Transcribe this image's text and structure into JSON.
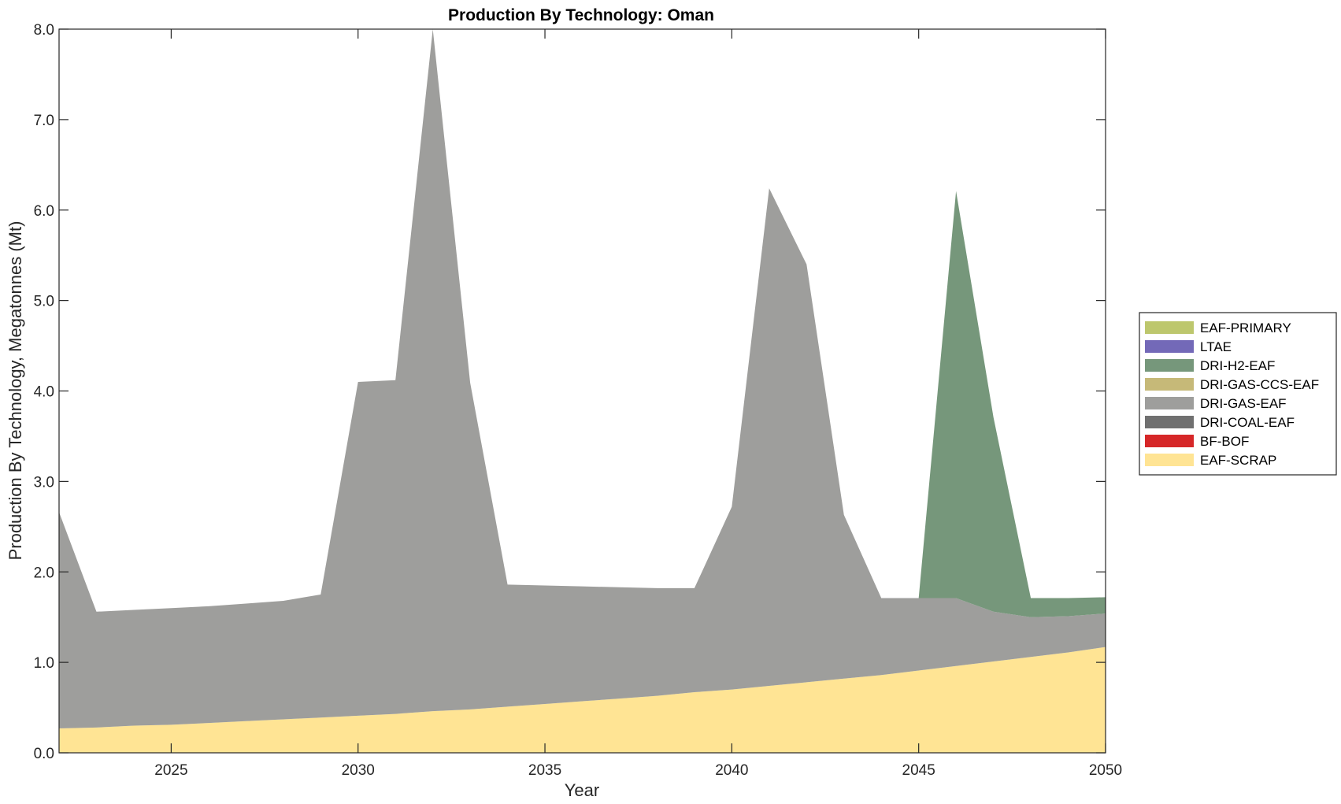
{
  "chart_data": {
    "type": "area",
    "stacked": true,
    "title": "Production By Technology: Oman",
    "xlabel": "Year",
    "ylabel": "Production By Technology, Megatonnes (Mt)",
    "xlim": [
      2022,
      2050
    ],
    "ylim": [
      0,
      8
    ],
    "xticks": [
      2025,
      2030,
      2035,
      2040,
      2045,
      2050
    ],
    "yticks": [
      0,
      1,
      2,
      3,
      4,
      5,
      6,
      7,
      8
    ],
    "ytick_labels": [
      "0.0",
      "1.0",
      "2.0",
      "3.0",
      "4.0",
      "5.0",
      "6.0",
      "7.0",
      "8.0"
    ],
    "grid": false,
    "legend_position": "right",
    "x": [
      2022,
      2023,
      2024,
      2025,
      2026,
      2027,
      2028,
      2029,
      2030,
      2031,
      2032,
      2033,
      2034,
      2035,
      2036,
      2037,
      2038,
      2039,
      2040,
      2041,
      2042,
      2043,
      2044,
      2045,
      2046,
      2047,
      2048,
      2049,
      2050
    ],
    "series": [
      {
        "name": "EAF-SCRAP",
        "color": "#FFE494",
        "values": [
          0.27,
          0.28,
          0.3,
          0.31,
          0.33,
          0.35,
          0.37,
          0.39,
          0.41,
          0.43,
          0.46,
          0.48,
          0.51,
          0.54,
          0.57,
          0.6,
          0.63,
          0.67,
          0.7,
          0.74,
          0.78,
          0.82,
          0.86,
          0.91,
          0.96,
          1.01,
          1.06,
          1.11,
          1.17
        ]
      },
      {
        "name": "BF-BOF",
        "color": "#D62728",
        "values": [
          0,
          0,
          0,
          0,
          0,
          0,
          0,
          0,
          0,
          0,
          0,
          0,
          0,
          0,
          0,
          0,
          0,
          0,
          0,
          0,
          0,
          0,
          0,
          0,
          0,
          0,
          0,
          0,
          0
        ]
      },
      {
        "name": "DRI-COAL-EAF",
        "color": "#707070",
        "values": [
          0,
          0,
          0,
          0,
          0,
          0,
          0,
          0,
          0,
          0,
          0,
          0,
          0,
          0,
          0,
          0,
          0,
          0,
          0,
          0,
          0,
          0,
          0,
          0,
          0,
          0,
          0,
          0,
          0
        ]
      },
      {
        "name": "DRI-GAS-EAF",
        "color": "#9E9E9C",
        "values": [
          2.39,
          1.28,
          1.28,
          1.29,
          1.29,
          1.3,
          1.31,
          1.36,
          3.69,
          3.69,
          7.54,
          3.61,
          1.35,
          1.31,
          1.27,
          1.23,
          1.19,
          1.15,
          2.02,
          5.5,
          4.62,
          1.81,
          0.85,
          0.8,
          0.75,
          0.55,
          0.44,
          0.4,
          0.37
        ]
      },
      {
        "name": "DRI-GAS-CCS-EAF",
        "color": "#C6B978",
        "values": [
          0,
          0,
          0,
          0,
          0,
          0,
          0,
          0,
          0,
          0,
          0,
          0,
          0,
          0,
          0,
          0,
          0,
          0,
          0,
          0,
          0,
          0,
          0,
          0,
          0,
          0,
          0,
          0,
          0
        ]
      },
      {
        "name": "DRI-H2-EAF",
        "color": "#76977B",
        "values": [
          0,
          0,
          0,
          0,
          0,
          0,
          0,
          0,
          0,
          0,
          0,
          0,
          0,
          0,
          0,
          0,
          0,
          0,
          0,
          0,
          0,
          0,
          0,
          0,
          4.5,
          2.15,
          0.21,
          0.2,
          0.18
        ]
      },
      {
        "name": "LTAE",
        "color": "#7369B8",
        "values": [
          0,
          0,
          0,
          0,
          0,
          0,
          0,
          0,
          0,
          0,
          0,
          0,
          0,
          0,
          0,
          0,
          0,
          0,
          0,
          0,
          0,
          0,
          0,
          0,
          0,
          0,
          0,
          0,
          0
        ]
      },
      {
        "name": "EAF-PRIMARY",
        "color": "#BDC76D",
        "values": [
          0,
          0,
          0,
          0,
          0,
          0,
          0,
          0,
          0,
          0,
          0,
          0,
          0,
          0,
          0,
          0,
          0,
          0,
          0,
          0,
          0,
          0,
          0,
          0,
          0,
          0,
          0,
          0,
          0
        ]
      }
    ],
    "legend_order": [
      "EAF-PRIMARY",
      "LTAE",
      "DRI-H2-EAF",
      "DRI-GAS-CCS-EAF",
      "DRI-GAS-EAF",
      "DRI-COAL-EAF",
      "BF-BOF",
      "EAF-SCRAP"
    ]
  }
}
